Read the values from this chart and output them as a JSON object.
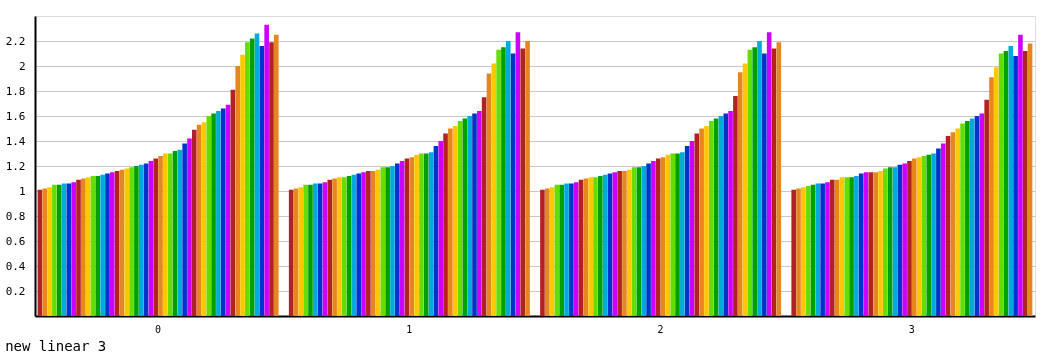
{
  "chart_data": {
    "type": "bar",
    "title": "new linear 3",
    "categories": [
      "0",
      "1",
      "2",
      "3"
    ],
    "ylim": [
      0,
      2.4
    ],
    "yticks": [
      0.2,
      0.4,
      0.6,
      0.8,
      1,
      1.2,
      1.4,
      1.6,
      1.8,
      2,
      2.2
    ],
    "grid": "y",
    "series": [
      {
        "color": "#b22222",
        "values": [
          1.01,
          1.01,
          1.01,
          1.01
        ]
      },
      {
        "color": "#e6861e",
        "values": [
          1.02,
          1.02,
          1.02,
          1.02
        ]
      },
      {
        "color": "#ffc700",
        "values": [
          1.03,
          1.03,
          1.03,
          1.03
        ]
      },
      {
        "color": "#66dd00",
        "values": [
          1.05,
          1.05,
          1.05,
          1.04
        ]
      },
      {
        "color": "#00a000",
        "values": [
          1.05,
          1.05,
          1.05,
          1.05
        ]
      },
      {
        "color": "#00aadd",
        "values": [
          1.06,
          1.06,
          1.06,
          1.06
        ]
      },
      {
        "color": "#0033cc",
        "values": [
          1.06,
          1.06,
          1.06,
          1.06
        ]
      },
      {
        "color": "#cc00ff",
        "values": [
          1.07,
          1.07,
          1.07,
          1.07
        ]
      },
      {
        "color": "#b22222",
        "values": [
          1.09,
          1.09,
          1.09,
          1.09
        ]
      },
      {
        "color": "#e6861e",
        "values": [
          1.1,
          1.1,
          1.1,
          1.09
        ]
      },
      {
        "color": "#ffc700",
        "values": [
          1.11,
          1.11,
          1.11,
          1.11
        ]
      },
      {
        "color": "#66dd00",
        "values": [
          1.12,
          1.11,
          1.11,
          1.11
        ]
      },
      {
        "color": "#00a000",
        "values": [
          1.12,
          1.12,
          1.12,
          1.11
        ]
      },
      {
        "color": "#00aadd",
        "values": [
          1.13,
          1.13,
          1.13,
          1.12
        ]
      },
      {
        "color": "#0033cc",
        "values": [
          1.14,
          1.14,
          1.14,
          1.14
        ]
      },
      {
        "color": "#cc00ff",
        "values": [
          1.15,
          1.15,
          1.15,
          1.15
        ]
      },
      {
        "color": "#b22222",
        "values": [
          1.16,
          1.16,
          1.16,
          1.15
        ]
      },
      {
        "color": "#e6861e",
        "values": [
          1.17,
          1.16,
          1.16,
          1.15
        ]
      },
      {
        "color": "#ffc700",
        "values": [
          1.18,
          1.17,
          1.17,
          1.16
        ]
      },
      {
        "color": "#66dd00",
        "values": [
          1.19,
          1.19,
          1.19,
          1.18
        ]
      },
      {
        "color": "#00a000",
        "values": [
          1.2,
          1.19,
          1.19,
          1.19
        ]
      },
      {
        "color": "#00aadd",
        "values": [
          1.21,
          1.2,
          1.2,
          1.19
        ]
      },
      {
        "color": "#0033cc",
        "values": [
          1.22,
          1.22,
          1.22,
          1.21
        ]
      },
      {
        "color": "#cc00ff",
        "values": [
          1.24,
          1.24,
          1.24,
          1.22
        ]
      },
      {
        "color": "#b22222",
        "values": [
          1.26,
          1.26,
          1.26,
          1.24
        ]
      },
      {
        "color": "#e6861e",
        "values": [
          1.28,
          1.27,
          1.27,
          1.26
        ]
      },
      {
        "color": "#ffc700",
        "values": [
          1.3,
          1.29,
          1.29,
          1.27
        ]
      },
      {
        "color": "#66dd00",
        "values": [
          1.3,
          1.3,
          1.3,
          1.28
        ]
      },
      {
        "color": "#00a000",
        "values": [
          1.32,
          1.3,
          1.3,
          1.29
        ]
      },
      {
        "color": "#00aadd",
        "values": [
          1.33,
          1.31,
          1.31,
          1.3
        ]
      },
      {
        "color": "#0033cc",
        "values": [
          1.38,
          1.36,
          1.36,
          1.34
        ]
      },
      {
        "color": "#cc00ff",
        "values": [
          1.42,
          1.4,
          1.4,
          1.38
        ]
      },
      {
        "color": "#b22222",
        "values": [
          1.49,
          1.46,
          1.46,
          1.44
        ]
      },
      {
        "color": "#e6861e",
        "values": [
          1.53,
          1.5,
          1.5,
          1.47
        ]
      },
      {
        "color": "#ffc700",
        "values": [
          1.55,
          1.52,
          1.52,
          1.5
        ]
      },
      {
        "color": "#66dd00",
        "values": [
          1.6,
          1.56,
          1.56,
          1.54
        ]
      },
      {
        "color": "#00a000",
        "values": [
          1.62,
          1.58,
          1.58,
          1.56
        ]
      },
      {
        "color": "#00aadd",
        "values": [
          1.64,
          1.6,
          1.6,
          1.58
        ]
      },
      {
        "color": "#0033cc",
        "values": [
          1.66,
          1.62,
          1.62,
          1.6
        ]
      },
      {
        "color": "#cc00ff",
        "values": [
          1.69,
          1.64,
          1.64,
          1.62
        ]
      },
      {
        "color": "#b22222",
        "values": [
          1.81,
          1.75,
          1.76,
          1.73
        ]
      },
      {
        "color": "#e6861e",
        "values": [
          2.0,
          1.94,
          1.95,
          1.91
        ]
      },
      {
        "color": "#ffc700",
        "values": [
          2.09,
          2.02,
          2.02,
          1.99
        ]
      },
      {
        "color": "#66dd00",
        "values": [
          2.19,
          2.13,
          2.13,
          2.1
        ]
      },
      {
        "color": "#00a000",
        "values": [
          2.22,
          2.15,
          2.15,
          2.12
        ]
      },
      {
        "color": "#00aadd",
        "values": [
          2.26,
          2.2,
          2.2,
          2.16
        ]
      },
      {
        "color": "#0033cc",
        "values": [
          2.16,
          2.1,
          2.1,
          2.08
        ]
      },
      {
        "color": "#cc00ff",
        "values": [
          2.33,
          2.27,
          2.27,
          2.25
        ]
      },
      {
        "color": "#b22222",
        "values": [
          2.19,
          2.14,
          2.14,
          2.12
        ]
      },
      {
        "color": "#e6861e",
        "values": [
          2.25,
          2.2,
          2.19,
          2.18
        ]
      }
    ]
  }
}
